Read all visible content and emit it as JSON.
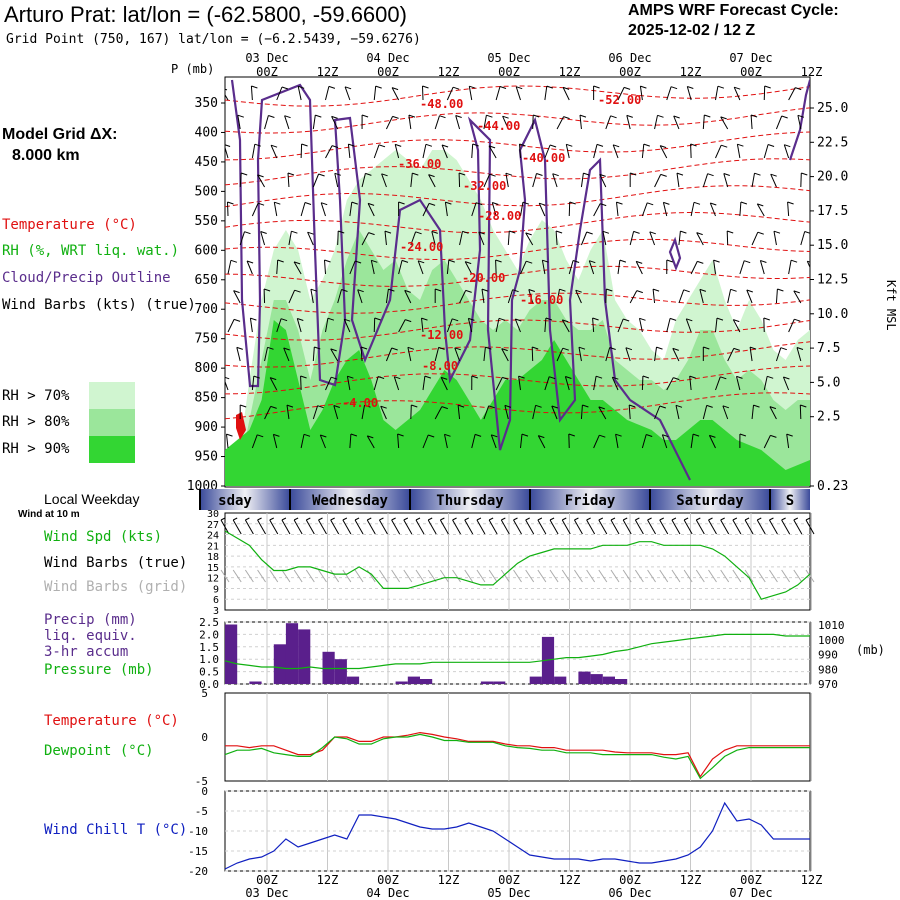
{
  "header": {
    "station": "Arturo Prat:",
    "latlon": "lat/lon = (-62.5800, -59.6600)",
    "grid_point": "Grid Point (750, 167) lat/lon = (−6.2.5439, −59.6276)",
    "cycle_title": "AMPS WRF Forecast Cycle:",
    "cycle": "2025-12-02 / 12  Z"
  },
  "model_grid": {
    "label": "Model Grid ΔX:",
    "value": "8.000 km"
  },
  "legend": {
    "temperature": "Temperature (°C)",
    "rh": "RH (%, WRT liq. wat.)",
    "cloud": "Cloud/Precip Outline",
    "wind": "Wind Barbs (kts) (true)",
    "rh_bins": [
      {
        "label": "RH > 70%",
        "color": "#d0f5d0"
      },
      {
        "label": "RH > 80%",
        "color": "#9be69b"
      },
      {
        "label": "RH > 90%",
        "color": "#33d633"
      }
    ]
  },
  "colors": {
    "temp": "#e01010",
    "dew": "#10b010",
    "cloud": "#5a2d8c",
    "wchill": "#1020c0",
    "precip": "#5a1f8c"
  },
  "time_axis": {
    "top_dates": [
      "03 Dec",
      "04 Dec",
      "05 Dec",
      "06 Dec",
      "07 Dec"
    ],
    "hour_labels": [
      "00Z",
      "12Z",
      "00Z",
      "12Z",
      "00Z",
      "12Z",
      "00Z",
      "12Z",
      "00Z",
      "12Z"
    ],
    "weekdays": [
      "sday",
      "Wednesday",
      "Thursday",
      "Friday",
      "Saturday",
      "S"
    ],
    "weekday_title": "Local Weekday"
  },
  "chart_data": [
    {
      "type": "heatmap",
      "description_key": "cross-section",
      "y_title": "P (mb)",
      "pressure_levels": [
        "350",
        "400",
        "450",
        "500",
        "550",
        "600",
        "650",
        "700",
        "750",
        "800",
        "850",
        "900",
        "950",
        "1000"
      ],
      "right_axis_title": "Kft MSL",
      "height_ticks": [
        "25.0",
        "22.5",
        "20.0",
        "17.5",
        "15.0",
        "12.5",
        "10.0",
        "7.5",
        "5.0",
        "2.5",
        "0.23"
      ],
      "temp_contour_labels": [
        "-48.00",
        "-52.00",
        "-44.00",
        "-36.00",
        "-40.00",
        "-32.00",
        "-28.00",
        "-24.00",
        "-20.00",
        "-16.00",
        "-12.00",
        "-8.00",
        "-4.00"
      ]
    },
    {
      "type": "line",
      "legend": [
        "Wind at 10 m",
        "Wind Spd (kts)",
        "Wind Barbs (true)",
        "Wind Barbs (grid)"
      ],
      "y_ticks": [
        "30",
        "27",
        "24",
        "21",
        "18",
        "15",
        "12",
        "9",
        "6",
        "3"
      ],
      "ylim": [
        3,
        30
      ],
      "values": [
        25,
        23,
        21,
        17,
        14,
        14,
        15,
        15,
        14,
        13,
        13,
        15,
        13,
        9,
        9,
        9,
        10,
        11,
        12,
        12,
        11,
        10,
        10,
        13,
        16,
        18,
        19,
        20,
        20,
        20,
        20,
        21,
        21,
        21,
        22,
        22,
        21,
        21,
        21,
        21,
        20,
        18,
        15,
        12,
        6,
        7,
        8,
        10,
        13
      ]
    },
    {
      "type": "bar",
      "legend": [
        "Precip (mm)",
        "liq. equiv.",
        "3-hr accum",
        "Pressure (mb)"
      ],
      "y_ticks": [
        "2.5",
        "2.0",
        "1.5",
        "1.0",
        "0.5",
        "0.0"
      ],
      "right_ticks": [
        "1010",
        "1000",
        "990",
        "980",
        "970"
      ],
      "right_unit": "(mb)",
      "ylim": [
        0,
        2.5
      ],
      "precip": [
        2.4,
        0,
        0.1,
        0,
        1.6,
        2.45,
        2.2,
        0,
        1.3,
        1.0,
        0.3,
        0,
        0,
        0,
        0.1,
        0.3,
        0.2,
        0,
        0,
        0,
        0,
        0.1,
        0.1,
        0,
        0,
        0.3,
        1.9,
        0.3,
        0,
        0.5,
        0.4,
        0.3,
        0.2,
        0,
        0,
        0,
        0,
        0,
        0,
        0,
        0,
        0,
        0,
        0,
        0,
        0,
        0,
        0,
        0
      ],
      "pressure": [
        985,
        983,
        982,
        981,
        981,
        980,
        980,
        981,
        980,
        980,
        980,
        980,
        981,
        982,
        983,
        983,
        983,
        984,
        984,
        984,
        984,
        984,
        984,
        984,
        984,
        984,
        985,
        986,
        987,
        987,
        988,
        989,
        991,
        992,
        994,
        996,
        997,
        998,
        999,
        1000,
        1001,
        1002,
        1002,
        1002,
        1002,
        1002,
        1001,
        1001,
        1001
      ]
    },
    {
      "type": "line",
      "series": [
        {
          "name": "Temperature (°C)",
          "values": [
            -1,
            -1,
            -1.2,
            -1,
            -1,
            -1.5,
            -2,
            -2,
            -1.5,
            0,
            0,
            -0.5,
            -0.5,
            0,
            0,
            0.2,
            0.5,
            0.3,
            0,
            -0.2,
            -0.5,
            -0.5,
            -0.5,
            -0.8,
            -1,
            -1,
            -1.2,
            -1.2,
            -1.5,
            -1.5,
            -1.5,
            -1.5,
            -1.7,
            -1.8,
            -1.8,
            -1.8,
            -2,
            -2,
            -1.8,
            -4.5,
            -2.5,
            -1.5,
            -1,
            -1,
            -1,
            -1,
            -1,
            -1,
            -1
          ]
        },
        {
          "name": "Dewpoint (°C)",
          "values": [
            -2,
            -1.5,
            -1.5,
            -1.3,
            -1.8,
            -2,
            -2.2,
            -2.2,
            -1.2,
            0,
            -0.2,
            -0.8,
            -0.8,
            -0.2,
            0,
            0,
            0.3,
            0,
            -0.4,
            -0.4,
            -0.6,
            -0.6,
            -0.6,
            -1,
            -1.2,
            -1.3,
            -1.5,
            -1.5,
            -1.8,
            -1.8,
            -1.8,
            -2,
            -2,
            -2,
            -2,
            -2,
            -2.3,
            -2.5,
            -2.2,
            -4.7,
            -3.5,
            -2.2,
            -1.5,
            -1.2,
            -1.2,
            -1.2,
            -1.2,
            -1.2,
            -1.2
          ]
        }
      ],
      "y_ticks": [
        "5",
        "0",
        "-5"
      ],
      "ylim": [
        -5,
        5
      ]
    },
    {
      "type": "line",
      "series": [
        {
          "name": "Wind Chill T (°C)",
          "values": [
            -19.5,
            -18,
            -17,
            -16.5,
            -15,
            -12,
            -14,
            -13,
            -12,
            -11,
            -12,
            -6,
            -6,
            -6.5,
            -7,
            -8,
            -9,
            -9.5,
            -9.5,
            -9,
            -8,
            -9,
            -10,
            -12,
            -14,
            -16,
            -16.5,
            -17,
            -17,
            -17,
            -17.5,
            -17,
            -17,
            -17.5,
            -18,
            -18,
            -17.5,
            -17,
            -16,
            -14,
            -10,
            -3,
            -7.5,
            -7,
            -8.5,
            -12,
            -12,
            -12,
            -12
          ]
        }
      ],
      "y_ticks": [
        "0",
        "-5",
        "-10",
        "-15",
        "-20"
      ],
      "ylim": [
        -20,
        0
      ]
    }
  ]
}
